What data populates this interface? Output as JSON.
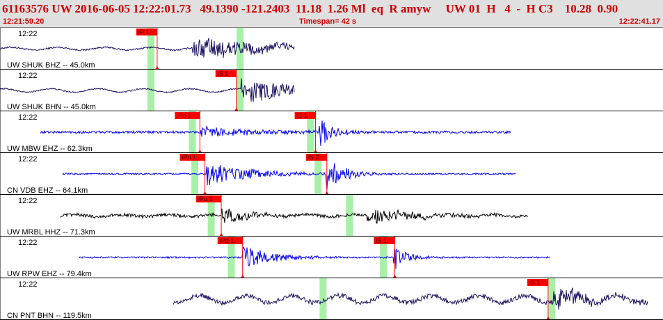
{
  "header": {
    "event_line": "61163576 UW 2016-06-05 12:22:01.73   49.1390 -121.2403  11.18  1.26 Ml  eq  R amyw     UW 01  H   4  -  H C3    10.28  0.90",
    "start_time": "12:21:59.20",
    "timespan": "Timespan=  42 s",
    "end_time": "12:22:41.17"
  },
  "colors": {
    "header_bg": "#e0e0e0",
    "header_text": "#cc0000",
    "pick_flag": "#ff0000",
    "pick_window": "#a8f0a8",
    "trace_navy": "#1a1060",
    "trace_blue": "#0000ee",
    "trace_black": "#000000"
  },
  "traces": [
    {
      "name": "UW SHUK BHZ -- 45.0km",
      "time_label": "12:22",
      "color": "navy",
      "start": 0,
      "end": 23.4,
      "onset": 15.3,
      "noise": 0.04,
      "amp": 0.62,
      "decay": 6.5,
      "surface": {
        "at": 22.0,
        "amp": 0.16,
        "period": 4.2
      },
      "long_period": 0.07,
      "second": null,
      "windows": [
        12.0,
        19.1
      ],
      "picks": [
        {
          "label": "iP 1",
          "time": 12.5
        }
      ]
    },
    {
      "name": "UW SHUK BHN -- 45.0km",
      "time_label": "12:22",
      "color": "navy",
      "start": 0,
      "end": 23.4,
      "onset": 19.2,
      "noise": 0.03,
      "amp": 0.58,
      "decay": 7.0,
      "surface": null,
      "long_period": 0.09,
      "second": null,
      "windows": [
        12.0,
        19.1
      ],
      "picks": [
        {
          "label": "iS 1",
          "time": 18.8
        }
      ]
    },
    {
      "name": "UW MBW EHZ -- 62.3km",
      "time_label": "12:22",
      "color": "blue",
      "start": 3.2,
      "end": 40.6,
      "onset": 15.9,
      "noise": 0.06,
      "amp": 0.32,
      "decay": 4.5,
      "surface": null,
      "long_period": 0,
      "second": {
        "at": 25.3,
        "amp": 0.85,
        "decay": 1.2
      },
      "windows": [
        15.3,
        24.7
      ],
      "picks": [
        {
          "label": "iPc 1",
          "time": 15.9
        },
        {
          "label": "iS 1",
          "time": 25.1
        }
      ]
    },
    {
      "name": "CN VDB EHZ -- 64.1km",
      "time_label": "12:22",
      "color": "blue",
      "start": 5.0,
      "end": 41.0,
      "onset": 16.4,
      "noise": 0.04,
      "amp": 0.62,
      "decay": 3.5,
      "surface": null,
      "long_period": 0,
      "second": {
        "at": 25.9,
        "amp": 0.9,
        "decay": 1.5
      },
      "windows": [
        15.5,
        25.3
      ],
      "picks": [
        {
          "label": "iPd 1",
          "time": 16.3
        },
        {
          "label": "iS 2",
          "time": 26.0
        }
      ]
    },
    {
      "name": "UW MRBL HHZ -- 71.3km",
      "time_label": "12:22",
      "color": "black",
      "start": 4.8,
      "end": 42.0,
      "onset": 17.6,
      "noise": 0.08,
      "amp": 0.55,
      "decay": 1.8,
      "surface": null,
      "long_period": 0.05,
      "second": {
        "at": 29.2,
        "amp": 0.4,
        "decay": 4.0
      },
      "windows": [
        16.8,
        27.8
      ],
      "picks": [
        {
          "label": "iPd 1",
          "time": 17.6
        }
      ]
    },
    {
      "name": "UW RPW EHZ -- 79.4km",
      "time_label": "12:22",
      "color": "blue",
      "start": 6.3,
      "end": 43.8,
      "onset": 19.3,
      "noise": 0.04,
      "amp": 0.6,
      "decay": 2.5,
      "surface": null,
      "long_period": 0,
      "second": {
        "at": 31.3,
        "amp": 0.75,
        "decay": 1.0
      },
      "windows": [
        18.4,
        30.5
      ],
      "picks": [
        {
          "label": "iPd 1",
          "time": 19.3
        },
        {
          "label": "iS 1",
          "time": 31.4
        }
      ]
    },
    {
      "name": "CN PNT BHN -- 119.5km",
      "time_label": "12:22",
      "color": "navy",
      "start": 13.8,
      "end": 51.5,
      "onset": 44.0,
      "noise": 0.12,
      "amp": 0.6,
      "decay": 3.0,
      "surface": null,
      "long_period": 0.18,
      "second": null,
      "windows": [
        25.7,
        43.9
      ],
      "picks": [
        {
          "label": "iS 1",
          "time": 43.6
        }
      ]
    }
  ]
}
